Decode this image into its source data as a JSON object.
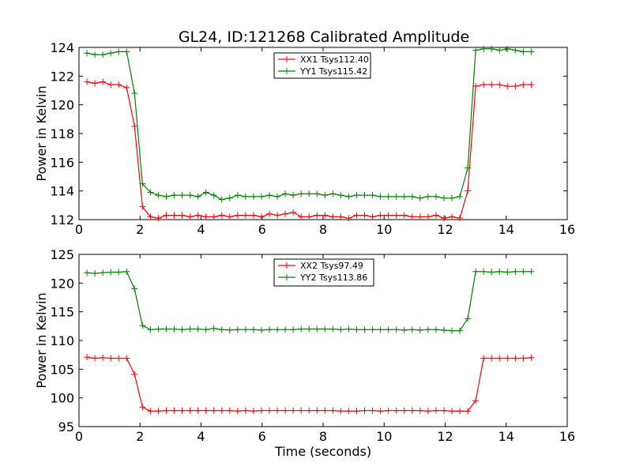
{
  "title": "GL24, ID:121268 Calibrated Amplitude",
  "chart_data": [
    {
      "type": "line",
      "title": "GL24, ID:121268 Calibrated Amplitude",
      "xlabel": "",
      "ylabel": "Power in Kelvin",
      "xlim": [
        0,
        16
      ],
      "ylim": [
        112,
        124
      ],
      "xticks": [
        "0",
        "2",
        "4",
        "6",
        "8",
        "10",
        "12",
        "14",
        "16"
      ],
      "yticks": [
        "112",
        "114",
        "116",
        "118",
        "120",
        "122",
        "124"
      ],
      "grid": false,
      "legend_position": "top-center",
      "x": [
        0.26,
        0.52,
        0.78,
        1.04,
        1.3,
        1.56,
        1.82,
        2.08,
        2.34,
        2.6,
        2.86,
        3.12,
        3.38,
        3.64,
        3.9,
        4.16,
        4.42,
        4.68,
        4.94,
        5.2,
        5.46,
        5.72,
        5.98,
        6.24,
        6.5,
        6.76,
        7.02,
        7.28,
        7.54,
        7.8,
        8.06,
        8.32,
        8.58,
        8.84,
        9.1,
        9.36,
        9.62,
        9.88,
        10.14,
        10.4,
        10.66,
        10.92,
        11.18,
        11.44,
        11.7,
        11.96,
        12.22,
        12.48,
        12.74,
        13.0,
        13.26,
        13.52,
        13.78,
        14.04,
        14.3,
        14.56,
        14.82
      ],
      "series": [
        {
          "name": "XX1 Tsys112.40",
          "color": "#ff0000",
          "values": [
            121.6,
            121.5,
            121.6,
            121.4,
            121.4,
            121.2,
            118.5,
            112.9,
            112.2,
            112.1,
            112.3,
            112.3,
            112.3,
            112.2,
            112.3,
            112.2,
            112.2,
            112.3,
            112.2,
            112.3,
            112.3,
            112.3,
            112.2,
            112.4,
            112.3,
            112.4,
            112.5,
            112.2,
            112.2,
            112.3,
            112.3,
            112.2,
            112.2,
            112.1,
            112.3,
            112.3,
            112.2,
            112.3,
            112.3,
            112.3,
            112.3,
            112.2,
            112.2,
            112.2,
            112.3,
            112.1,
            112.2,
            112.1,
            114.0,
            121.3,
            121.4,
            121.4,
            121.4,
            121.3,
            121.3,
            121.4,
            121.4
          ]
        },
        {
          "name": "YY1 Tsys115.42",
          "color": "#008000",
          "values": [
            123.6,
            123.5,
            123.5,
            123.6,
            123.7,
            123.7,
            120.8,
            114.5,
            113.9,
            113.7,
            113.6,
            113.7,
            113.7,
            113.7,
            113.6,
            113.9,
            113.7,
            113.4,
            113.5,
            113.7,
            113.6,
            113.6,
            113.6,
            113.7,
            113.6,
            113.8,
            113.7,
            113.8,
            113.8,
            113.8,
            113.7,
            113.8,
            113.7,
            113.6,
            113.7,
            113.7,
            113.7,
            113.6,
            113.6,
            113.6,
            113.6,
            113.6,
            113.5,
            113.6,
            113.6,
            113.5,
            113.5,
            113.6,
            115.6,
            123.8,
            123.9,
            123.9,
            123.8,
            123.9,
            123.8,
            123.7,
            123.7
          ]
        }
      ]
    },
    {
      "type": "line",
      "title": "",
      "xlabel": "Time (seconds)",
      "ylabel": "Power in Kelvin",
      "xlim": [
        0,
        16
      ],
      "ylim": [
        95,
        125
      ],
      "xticks": [
        "0",
        "2",
        "4",
        "6",
        "8",
        "10",
        "12",
        "14",
        "16"
      ],
      "yticks": [
        "95",
        "100",
        "105",
        "110",
        "115",
        "120",
        "125"
      ],
      "grid": false,
      "legend_position": "top-center",
      "x": [
        0.26,
        0.52,
        0.78,
        1.04,
        1.3,
        1.56,
        1.82,
        2.08,
        2.34,
        2.6,
        2.86,
        3.12,
        3.38,
        3.64,
        3.9,
        4.16,
        4.42,
        4.68,
        4.94,
        5.2,
        5.46,
        5.72,
        5.98,
        6.24,
        6.5,
        6.76,
        7.02,
        7.28,
        7.54,
        7.8,
        8.06,
        8.32,
        8.58,
        8.84,
        9.1,
        9.36,
        9.62,
        9.88,
        10.14,
        10.4,
        10.66,
        10.92,
        11.18,
        11.44,
        11.7,
        11.96,
        12.22,
        12.48,
        12.74,
        13.0,
        13.26,
        13.52,
        13.78,
        14.04,
        14.3,
        14.56,
        14.82
      ],
      "series": [
        {
          "name": "XX2 Tsys97.49",
          "color": "#ff0000",
          "values": [
            107.1,
            106.9,
            107.0,
            106.9,
            106.9,
            106.9,
            104.1,
            98.4,
            97.7,
            97.7,
            97.8,
            97.8,
            97.8,
            97.8,
            97.8,
            97.8,
            97.8,
            97.8,
            97.8,
            97.7,
            97.8,
            97.7,
            97.8,
            97.8,
            97.8,
            97.8,
            97.8,
            97.8,
            97.8,
            97.8,
            97.8,
            97.8,
            97.7,
            97.7,
            97.7,
            97.8,
            97.8,
            97.7,
            97.8,
            97.8,
            97.8,
            97.8,
            97.8,
            97.7,
            97.8,
            97.8,
            97.7,
            97.7,
            97.7,
            99.5,
            106.9,
            106.9,
            106.9,
            106.9,
            106.9,
            106.9,
            107.0
          ]
        },
        {
          "name": "YY2 Tsys113.86",
          "color": "#008000",
          "values": [
            121.8,
            121.7,
            121.8,
            121.9,
            121.9,
            122.0,
            119.0,
            112.6,
            111.9,
            112.0,
            112.0,
            112.0,
            111.9,
            112.0,
            112.0,
            111.9,
            112.1,
            111.9,
            111.8,
            111.9,
            111.9,
            111.9,
            111.8,
            111.9,
            111.9,
            111.9,
            111.9,
            112.0,
            112.0,
            112.0,
            112.0,
            112.0,
            111.9,
            112.0,
            111.9,
            111.9,
            111.9,
            111.9,
            111.9,
            111.9,
            111.8,
            111.9,
            111.8,
            111.9,
            111.9,
            111.8,
            111.7,
            111.7,
            113.8,
            122.0,
            122.0,
            121.9,
            122.0,
            121.9,
            122.0,
            122.0,
            122.0
          ]
        }
      ]
    }
  ]
}
